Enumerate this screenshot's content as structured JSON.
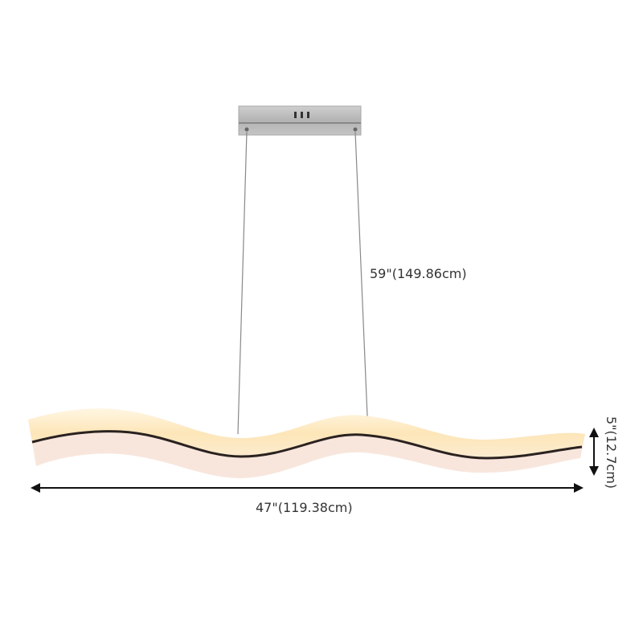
{
  "product": "wave LED linear pendant light",
  "dimensions": {
    "drop": "59\"(149.86cm)",
    "width": "47\"(119.38cm)",
    "height": "5\"(12.7cm)"
  },
  "colors": {
    "glow": "#fdebc4",
    "diffuser": "#f7e6dc",
    "trim": "#2a2220",
    "canopy": "#b8b8b8",
    "arrow": "#111111"
  }
}
